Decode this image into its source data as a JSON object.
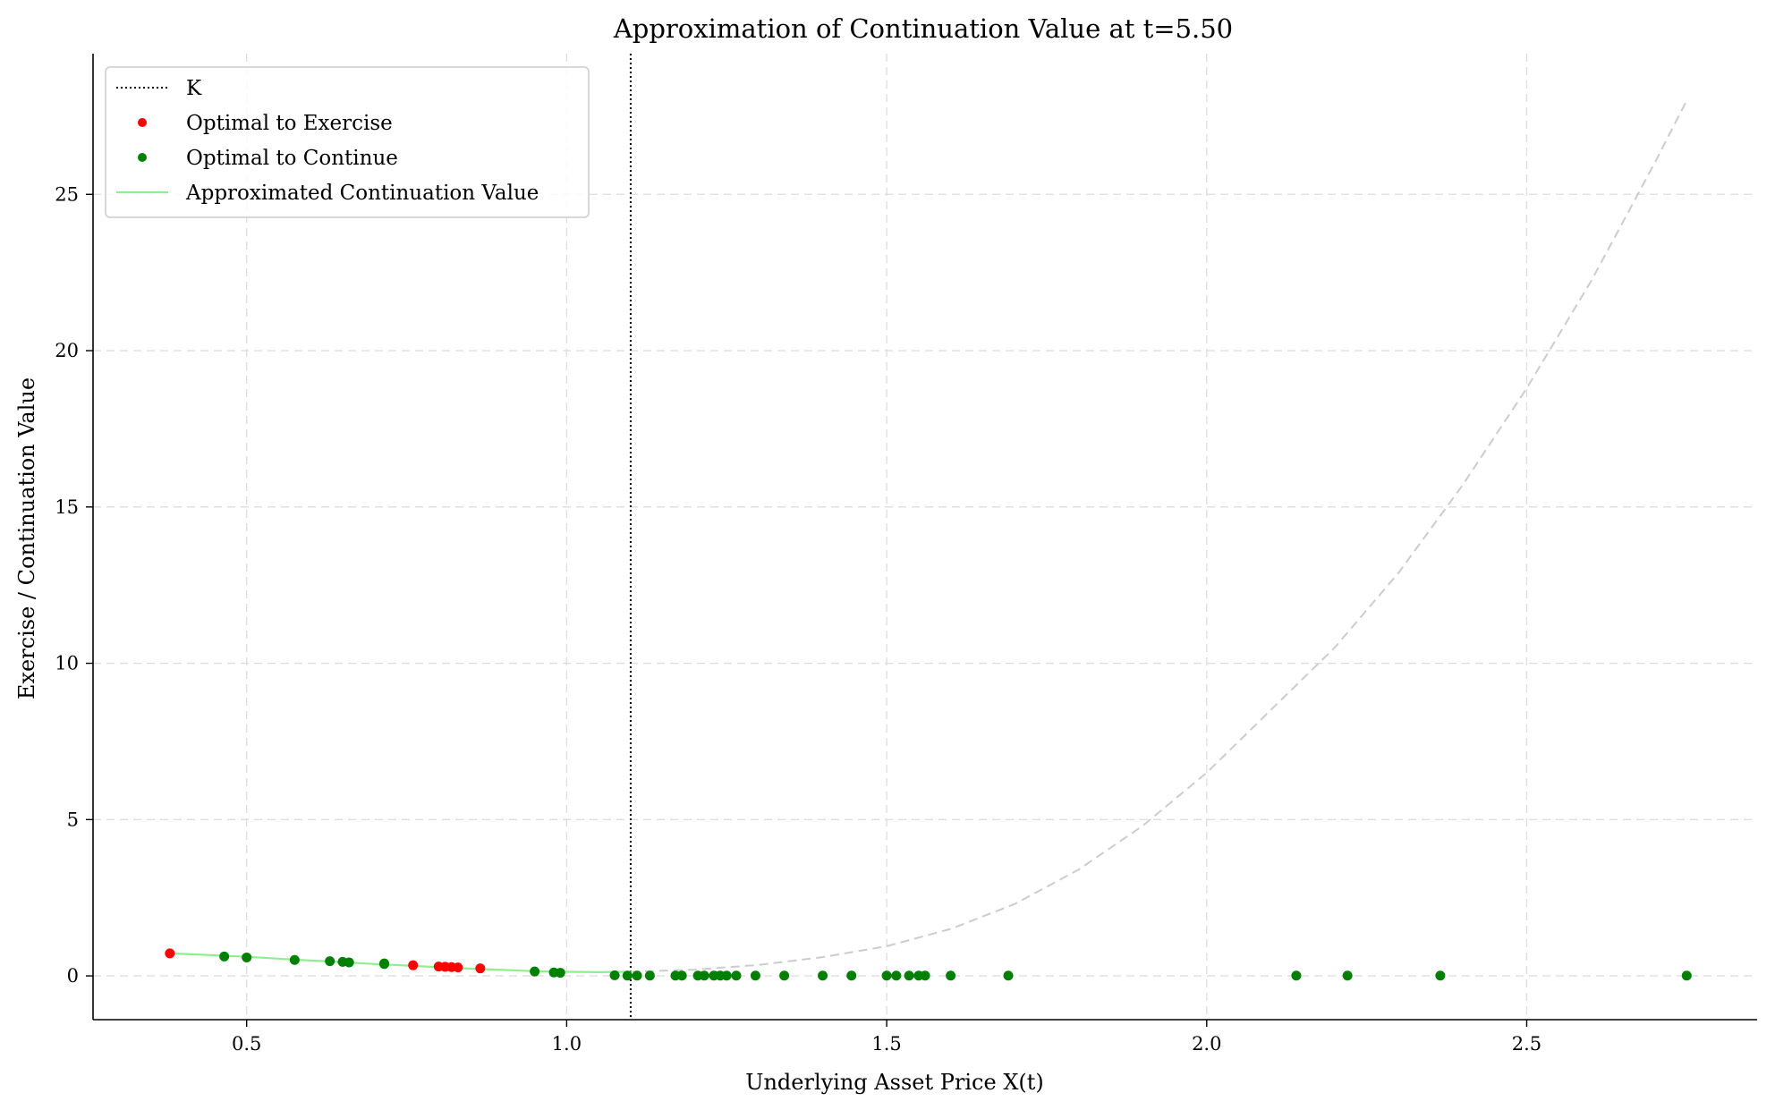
{
  "chart_data": {
    "type": "scatter",
    "title": "Approximation of Continuation Value at t=5.50",
    "xlabel": "Underlying Asset Price X(t)",
    "ylabel": "Exercise / Continuation Value",
    "xlim": [
      0.26,
      2.86
    ],
    "ylim": [
      -1.4,
      29.5
    ],
    "xticks": [
      0.5,
      1.0,
      1.5,
      2.0,
      2.5
    ],
    "xtick_labels": [
      "0.5",
      "1.0",
      "1.5",
      "2.0",
      "2.5"
    ],
    "yticks": [
      0,
      5,
      10,
      15,
      20,
      25
    ],
    "ytick_labels": [
      "0",
      "5",
      "10",
      "15",
      "20",
      "25"
    ],
    "grid": true,
    "legend_position": "top-left",
    "strike": {
      "name": "K",
      "x": 1.1,
      "color": "#000000"
    },
    "series": [
      {
        "name": "Optimal to Exercise",
        "kind": "points",
        "color": "#ff0000",
        "x": [
          0.38,
          0.76,
          0.8,
          0.81,
          0.82,
          0.83,
          0.865
        ],
        "y": [
          0.72,
          0.34,
          0.3,
          0.29,
          0.28,
          0.27,
          0.24
        ]
      },
      {
        "name": "Optimal to Continue",
        "kind": "points",
        "color": "#008000",
        "x": [
          0.465,
          0.5,
          0.575,
          0.63,
          0.65,
          0.66,
          0.715,
          0.715,
          0.95,
          0.98,
          0.99,
          1.075,
          1.095,
          1.11,
          1.13,
          1.17,
          1.18,
          1.205,
          1.215,
          1.23,
          1.24,
          1.25,
          1.265,
          1.295,
          1.34,
          1.4,
          1.445,
          1.5,
          1.515,
          1.535,
          1.55,
          1.56,
          1.6,
          1.69,
          2.14,
          2.22,
          2.365,
          2.75
        ],
        "y": [
          0.62,
          0.59,
          0.51,
          0.47,
          0.45,
          0.43,
          0.4,
          0.38,
          0.14,
          0.11,
          0.1,
          0.02,
          0.01,
          0.01,
          0.01,
          0.01,
          0.01,
          0.01,
          0.01,
          0.01,
          0.01,
          0.01,
          0.01,
          0.01,
          0.01,
          0.01,
          0.01,
          0.01,
          0.01,
          0.01,
          0.01,
          0.01,
          0.01,
          0.01,
          0.01,
          0.01,
          0.01,
          0.01
        ]
      },
      {
        "name": "Approximated Continuation Value",
        "kind": "line",
        "color": "#90ee90",
        "x": [
          0.38,
          0.45,
          0.5,
          0.55,
          0.6,
          0.65,
          0.7,
          0.75,
          0.8,
          0.85,
          0.9,
          0.95,
          1.0,
          1.05,
          1.1
        ],
        "y": [
          0.72,
          0.66,
          0.61,
          0.55,
          0.49,
          0.44,
          0.38,
          0.33,
          0.28,
          0.23,
          0.19,
          0.15,
          0.13,
          0.12,
          0.13
        ]
      },
      {
        "kind": "dashed-line",
        "color": "#cccccc",
        "x": [
          1.1,
          1.2,
          1.3,
          1.4,
          1.5,
          1.6,
          1.7,
          1.8,
          1.9,
          2.0,
          2.1,
          2.2,
          2.3,
          2.4,
          2.5,
          2.6,
          2.7,
          2.75
        ],
        "y": [
          0.13,
          0.2,
          0.35,
          0.6,
          0.95,
          1.5,
          2.3,
          3.4,
          4.8,
          6.5,
          8.5,
          10.5,
          12.9,
          15.7,
          18.8,
          22.2,
          26.0,
          28.0
        ]
      }
    ]
  }
}
